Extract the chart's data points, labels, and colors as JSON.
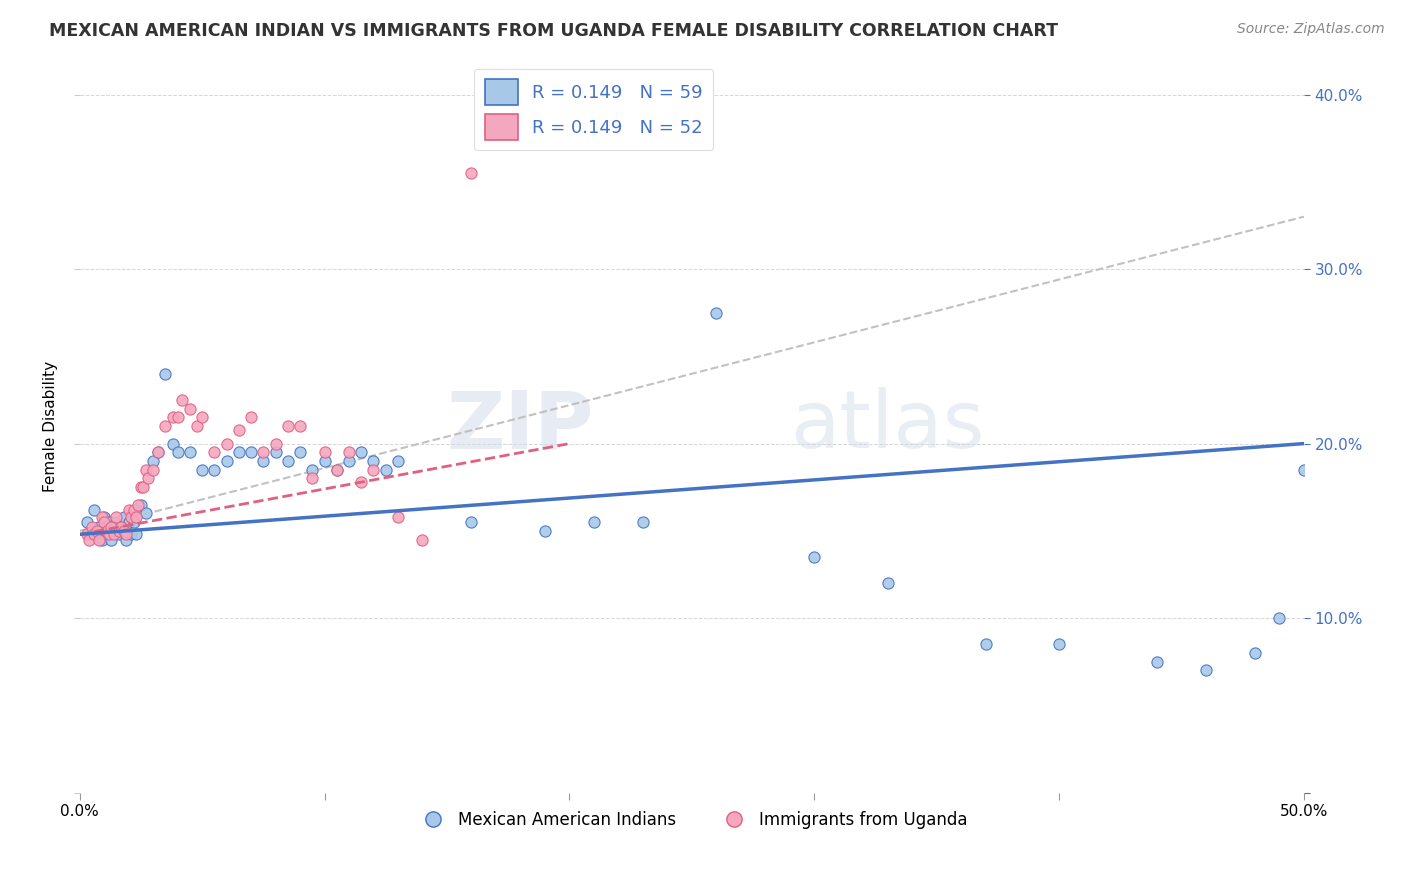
{
  "title": "MEXICAN AMERICAN INDIAN VS IMMIGRANTS FROM UGANDA FEMALE DISABILITY CORRELATION CHART",
  "source": "Source: ZipAtlas.com",
  "ylabel": "Female Disability",
  "xlim": [
    0.0,
    0.5
  ],
  "ylim": [
    0.0,
    0.42
  ],
  "x_ticks": [
    0.0,
    0.1,
    0.2,
    0.3,
    0.4,
    0.5
  ],
  "x_tick_labels": [
    "0.0%",
    "",
    "",
    "",
    "",
    "50.0%"
  ],
  "y_ticks": [
    0.0,
    0.1,
    0.2,
    0.3,
    0.4
  ],
  "y_tick_labels_left": [
    "",
    "",
    "",
    "",
    ""
  ],
  "y_tick_labels_right": [
    "",
    "10.0%",
    "20.0%",
    "30.0%",
    "40.0%"
  ],
  "blue_color": "#A8C8E8",
  "pink_color": "#F4A8C0",
  "trend_blue": "#4472C4",
  "trend_pink": "#E06080",
  "watermark1": "ZIP",
  "watermark2": "atlas",
  "legend1_label": "R = 0.149   N = 59",
  "legend2_label": "R = 0.149   N = 52",
  "legend_bottom_label1": "Mexican American Indians",
  "legend_bottom_label2": "Immigrants from Uganda",
  "blue_scatter_x": [
    0.003,
    0.005,
    0.006,
    0.007,
    0.008,
    0.009,
    0.01,
    0.011,
    0.012,
    0.013,
    0.014,
    0.015,
    0.016,
    0.017,
    0.018,
    0.019,
    0.02,
    0.021,
    0.022,
    0.023,
    0.025,
    0.027,
    0.03,
    0.032,
    0.035,
    0.038,
    0.04,
    0.045,
    0.05,
    0.055,
    0.06,
    0.065,
    0.07,
    0.075,
    0.08,
    0.085,
    0.09,
    0.095,
    0.1,
    0.105,
    0.11,
    0.115,
    0.12,
    0.125,
    0.13,
    0.16,
    0.19,
    0.21,
    0.23,
    0.26,
    0.3,
    0.33,
    0.37,
    0.4,
    0.44,
    0.46,
    0.48,
    0.49,
    0.5
  ],
  "blue_scatter_y": [
    0.155,
    0.148,
    0.162,
    0.15,
    0.152,
    0.145,
    0.158,
    0.148,
    0.155,
    0.145,
    0.15,
    0.155,
    0.148,
    0.152,
    0.158,
    0.145,
    0.155,
    0.148,
    0.155,
    0.148,
    0.165,
    0.16,
    0.19,
    0.195,
    0.24,
    0.2,
    0.195,
    0.195,
    0.185,
    0.185,
    0.19,
    0.195,
    0.195,
    0.19,
    0.195,
    0.19,
    0.195,
    0.185,
    0.19,
    0.185,
    0.19,
    0.195,
    0.19,
    0.185,
    0.19,
    0.155,
    0.15,
    0.155,
    0.155,
    0.275,
    0.135,
    0.12,
    0.085,
    0.085,
    0.075,
    0.07,
    0.08,
    0.1,
    0.185
  ],
  "pink_scatter_x": [
    0.003,
    0.004,
    0.005,
    0.006,
    0.007,
    0.008,
    0.009,
    0.01,
    0.011,
    0.012,
    0.013,
    0.014,
    0.015,
    0.016,
    0.017,
    0.018,
    0.019,
    0.02,
    0.021,
    0.022,
    0.023,
    0.024,
    0.025,
    0.026,
    0.027,
    0.028,
    0.03,
    0.032,
    0.035,
    0.038,
    0.04,
    0.042,
    0.045,
    0.048,
    0.05,
    0.055,
    0.06,
    0.065,
    0.07,
    0.075,
    0.08,
    0.085,
    0.09,
    0.095,
    0.1,
    0.105,
    0.11,
    0.115,
    0.12,
    0.13,
    0.14,
    0.16
  ],
  "pink_scatter_y": [
    0.148,
    0.145,
    0.152,
    0.148,
    0.15,
    0.145,
    0.158,
    0.155,
    0.15,
    0.148,
    0.152,
    0.148,
    0.158,
    0.15,
    0.152,
    0.15,
    0.148,
    0.162,
    0.158,
    0.162,
    0.158,
    0.165,
    0.175,
    0.175,
    0.185,
    0.18,
    0.185,
    0.195,
    0.21,
    0.215,
    0.215,
    0.225,
    0.22,
    0.21,
    0.215,
    0.195,
    0.2,
    0.208,
    0.215,
    0.195,
    0.2,
    0.21,
    0.21,
    0.18,
    0.195,
    0.185,
    0.195,
    0.178,
    0.185,
    0.158,
    0.145,
    0.355
  ],
  "blue_R": 0.149,
  "blue_N": 59,
  "pink_R": 0.149,
  "pink_N": 52,
  "blue_trend_start_x": 0.0,
  "blue_trend_start_y": 0.148,
  "blue_trend_end_x": 0.5,
  "blue_trend_end_y": 0.2,
  "pink_trend_start_x": 0.0,
  "pink_trend_start_y": 0.148,
  "pink_trend_end_x": 0.2,
  "pink_trend_end_y": 0.2,
  "gray_trend_start_x": 0.0,
  "gray_trend_start_y": 0.15,
  "gray_trend_end_x": 0.5,
  "gray_trend_end_y": 0.33
}
